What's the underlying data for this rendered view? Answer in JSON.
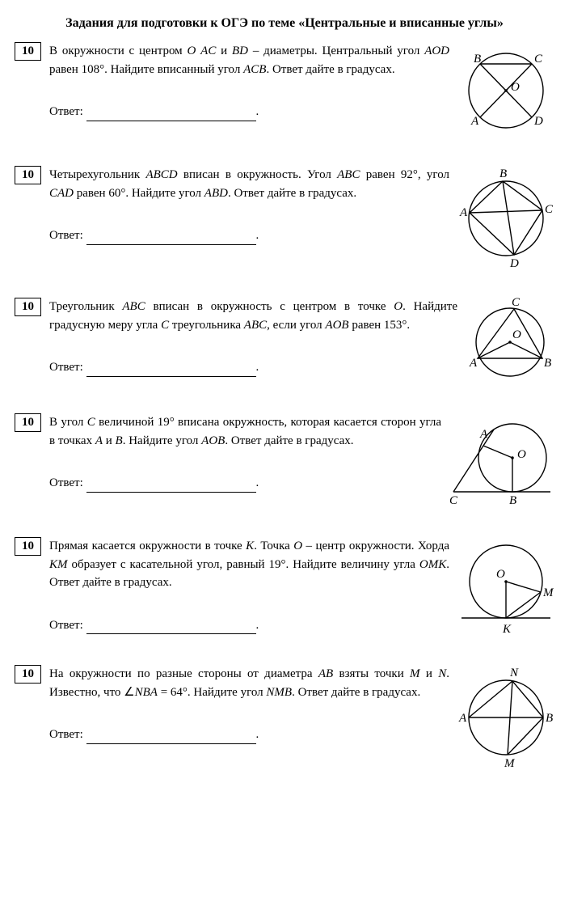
{
  "title": "Задания  для подготовки к ОГЭ по теме «Центральные и вписанные углы»",
  "answer_label": "Ответ:",
  "tasks": [
    {
      "num": "10",
      "segments": [
        {
          "t": "В окружности с центром "
        },
        {
          "t": "O",
          "it": true
        },
        {
          "t": "  "
        },
        {
          "t": "AC",
          "it": true
        },
        {
          "t": " и "
        },
        {
          "t": "BD",
          "it": true
        },
        {
          "t": " – диаметры. Центральный угол "
        },
        {
          "t": "AOD",
          "it": true
        },
        {
          "t": " равен 108°. Найдите вписанный угол "
        },
        {
          "t": "ACB",
          "it": true
        },
        {
          "t": ". Ответ дайте в градусах."
        }
      ]
    },
    {
      "num": "10",
      "segments": [
        {
          "t": "Четырехугольник "
        },
        {
          "t": "ABCD",
          "it": true
        },
        {
          "t": " вписан в окружность. Угол "
        },
        {
          "t": "ABC",
          "it": true
        },
        {
          "t": " равен 92°, угол "
        },
        {
          "t": "CAD",
          "it": true
        },
        {
          "t": " равен 60°. Найдите угол "
        },
        {
          "t": "ABD",
          "it": true
        },
        {
          "t": ". Ответ дайте в градусах."
        }
      ]
    },
    {
      "num": "10",
      "segments": [
        {
          "t": "Треугольник "
        },
        {
          "t": "ABC",
          "it": true
        },
        {
          "t": " вписан в окружность с центром в точке "
        },
        {
          "t": "O",
          "it": true
        },
        {
          "t": ". Найдите градусную меру угла "
        },
        {
          "t": "C",
          "it": true
        },
        {
          "t": " треугольника "
        },
        {
          "t": "ABC",
          "it": true
        },
        {
          "t": ", если угол "
        },
        {
          "t": "AOB",
          "it": true
        },
        {
          "t": " равен 153°."
        }
      ]
    },
    {
      "num": "10",
      "segments": [
        {
          "t": "В угол "
        },
        {
          "t": "C",
          "it": true
        },
        {
          "t": " величиной 19° вписана окружность, которая касается сторон угла в точках "
        },
        {
          "t": "A",
          "it": true
        },
        {
          "t": " и "
        },
        {
          "t": "B",
          "it": true
        },
        {
          "t": ". Найдите угол "
        },
        {
          "t": "AOB",
          "it": true
        },
        {
          "t": ". Ответ дайте в градусах."
        }
      ]
    },
    {
      "num": "10",
      "segments": [
        {
          "t": "Прямая касается окружности в точке "
        },
        {
          "t": "K",
          "it": true
        },
        {
          "t": ". Точка "
        },
        {
          "t": "O",
          "it": true
        },
        {
          "t": " – центр окружности. Хорда "
        },
        {
          "t": "KM",
          "it": true
        },
        {
          "t": " образует с касательной угол, равный 19°. Найдите величину угла "
        },
        {
          "t": "OMK",
          "it": true
        },
        {
          "t": ". Ответ дайте в градусах."
        }
      ]
    },
    {
      "num": "10",
      "segments": [
        {
          "t": "На окружности по разные стороны от диаметра "
        },
        {
          "t": "AB",
          "it": true
        },
        {
          "t": " взяты точки "
        },
        {
          "t": "M",
          "it": true
        },
        {
          "t": " и "
        },
        {
          "t": "N",
          "it": true
        },
        {
          "t": ". Известно, что  ∠"
        },
        {
          "t": "NBA",
          "it": true
        },
        {
          "t": " = 64°. Найдите угол "
        },
        {
          "t": "NMB",
          "it": true
        },
        {
          "t": ". Ответ дайте в градусах."
        }
      ]
    }
  ],
  "style": {
    "stroke": "#000000",
    "stroke_width": 1.4,
    "background": "#ffffff",
    "font_size_label": 15
  }
}
